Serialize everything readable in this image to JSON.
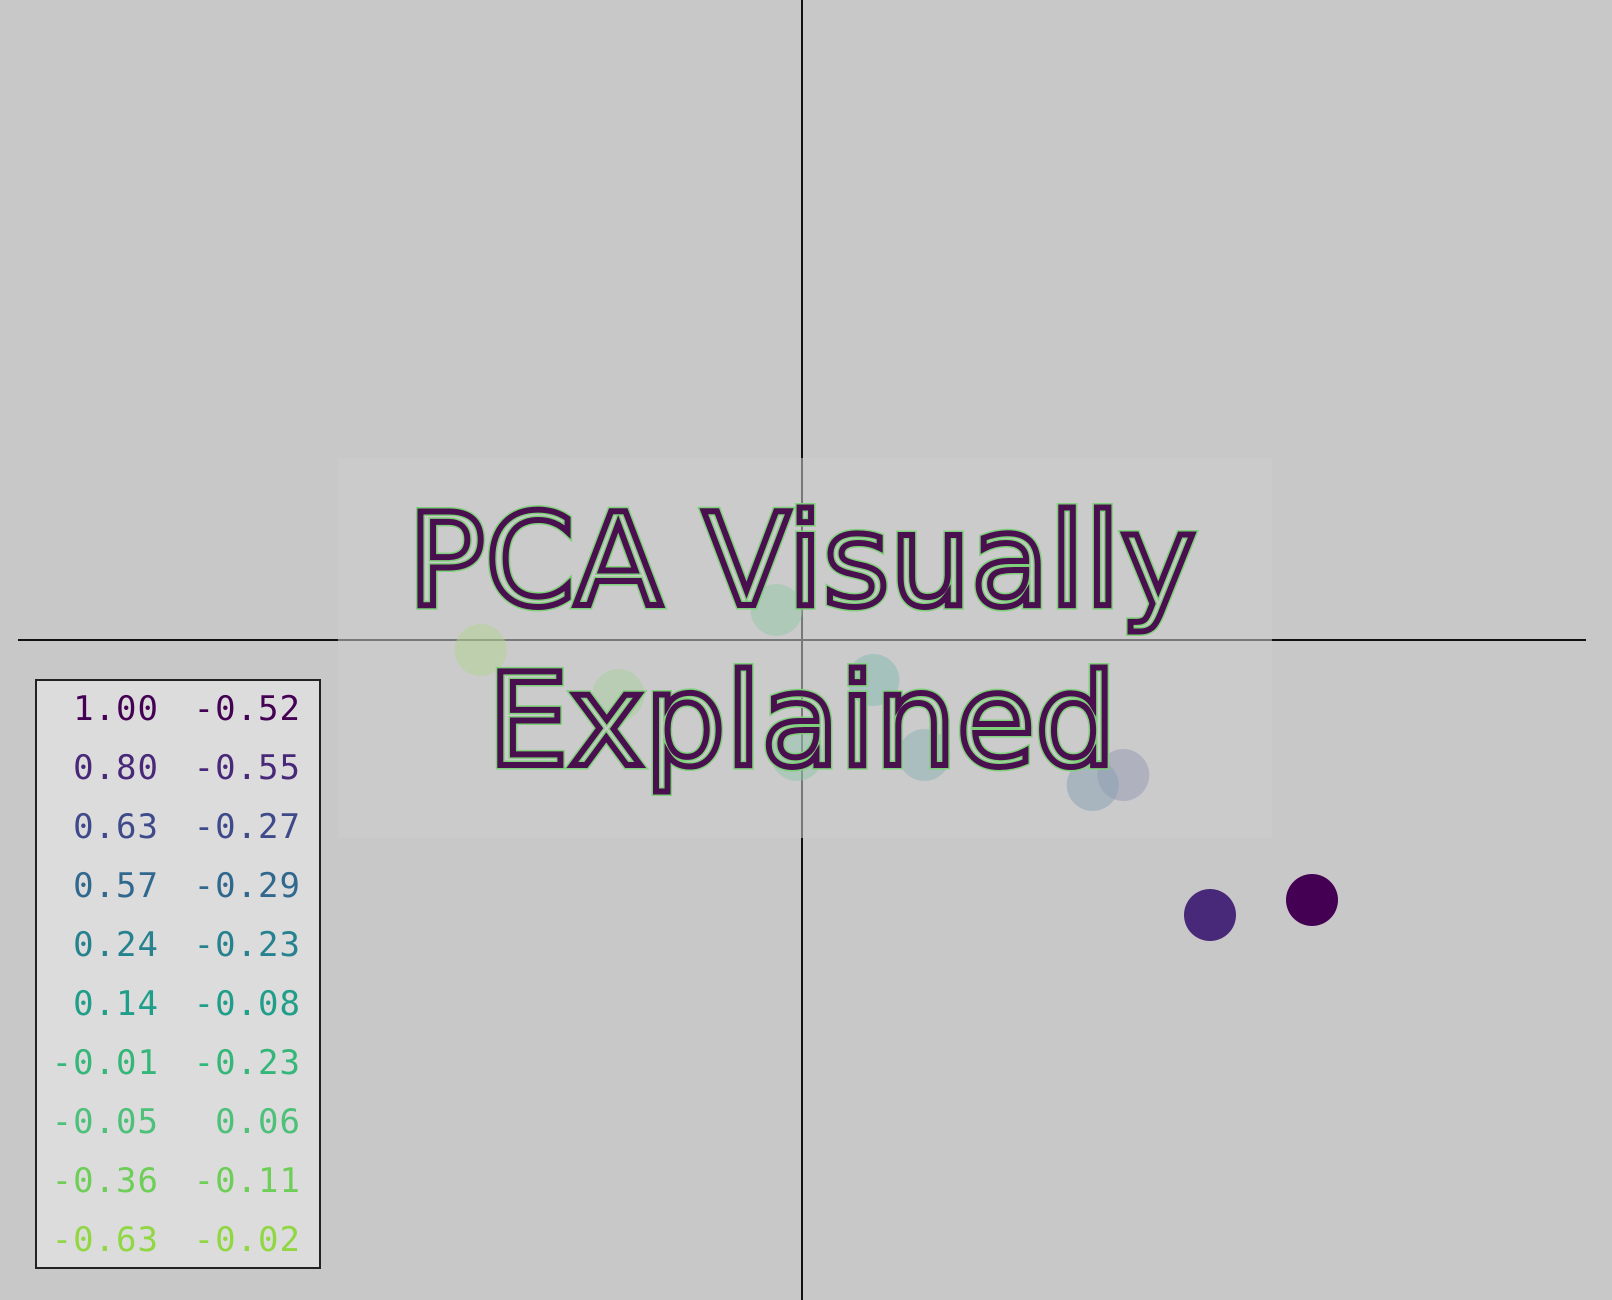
{
  "chart_data": {
    "type": "scatter",
    "title": "PCA Visually Explained",
    "xlim": [
      -1.0,
      1.0
    ],
    "ylim": [
      -1.0,
      1.0
    ],
    "grid": false,
    "legend": "bottom-left",
    "points": [
      {
        "x": 1.0,
        "y": -0.52,
        "color": "#440154"
      },
      {
        "x": 0.8,
        "y": -0.55,
        "color": "#482878"
      },
      {
        "x": 0.63,
        "y": -0.27,
        "color": "#3e4a89"
      },
      {
        "x": 0.57,
        "y": -0.29,
        "color": "#31688e"
      },
      {
        "x": 0.24,
        "y": -0.23,
        "color": "#26828e"
      },
      {
        "x": 0.14,
        "y": -0.08,
        "color": "#1f9e89"
      },
      {
        "x": -0.01,
        "y": -0.23,
        "color": "#35b779"
      },
      {
        "x": -0.05,
        "y": 0.06,
        "color": "#4dc07a"
      },
      {
        "x": -0.36,
        "y": -0.11,
        "color": "#6ece58"
      },
      {
        "x": -0.63,
        "y": -0.02,
        "color": "#90d743"
      }
    ],
    "table": [
      [
        "1.00",
        "-0.52"
      ],
      [
        "0.80",
        "-0.55"
      ],
      [
        "0.63",
        "-0.27"
      ],
      [
        "0.57",
        "-0.29"
      ],
      [
        "0.24",
        "-0.23"
      ],
      [
        "0.14",
        "-0.08"
      ],
      [
        "-0.01",
        "-0.23"
      ],
      [
        "-0.05",
        "0.06"
      ],
      [
        "-0.36",
        "-0.11"
      ],
      [
        "-0.63",
        "-0.02"
      ]
    ]
  },
  "title_lines": [
    "PCA Visually",
    "Explained"
  ],
  "colors": {
    "background": "#c8c8c8",
    "title_stroke": "#4a0f4f",
    "title_glow": "#7fd07a",
    "axis": "#111111"
  }
}
